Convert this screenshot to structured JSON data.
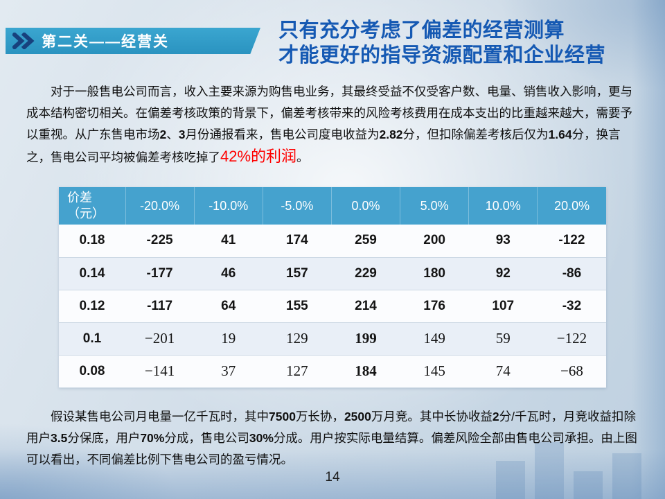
{
  "banner": {
    "label": "第二关——经营关",
    "icon": "double-chevron-right"
  },
  "title": {
    "line1": "只有充分考虑了偏差的经营测算",
    "line2": "才能更好的指导资源配置和企业经营"
  },
  "intro": {
    "before": "对于一般售电公司而言，收入主要来源为购售电业务，其最终受益不仅受客户数、电量、销售收入影响，更与成本结构密切相关。在偏差考核政策的背景下，偏差考核带来的风险考核费用在成本支出的比重越来越大，需要予以重视。从广东售电市场2、3月份通报看来，售电公司度电收益为2.82分，但扣除偏差考核后仅为1.64分，换言之，售电公司平均被偏差考核吃掉了",
    "highlight": "42%的利润",
    "after": "。"
  },
  "table": {
    "header": [
      "价差\n（元）",
      "-20.0%",
      "-10.0%",
      "-5.0%",
      "0.0%",
      "5.0%",
      "10.0%",
      "20.0%"
    ],
    "rows": [
      [
        "0.18",
        "-225",
        "41",
        "174",
        "259",
        "200",
        "93",
        "-122"
      ],
      [
        "0.14",
        "-177",
        "46",
        "157",
        "229",
        "180",
        "92",
        "-86"
      ],
      [
        "0.12",
        "-117",
        "64",
        "155",
        "214",
        "176",
        "107",
        "-32"
      ],
      [
        "0.1",
        "−201",
        "19",
        "129",
        "199",
        "149",
        "59",
        "−122"
      ],
      [
        "0.08",
        "−141",
        "37",
        "127",
        "184",
        "145",
        "74",
        "−68"
      ]
    ]
  },
  "footnote": "假设某售电公司月电量一亿千瓦时，其中7500万长协，2500万月竞。其中长协收益2分/千瓦时，月竞收益扣除用户3.5分保底，用户70%分成，售电公司30%分成。用户按实际电量结算。偏差风险全部由售电公司承担。由上图可以看出，不同偏差比例下售电公司的盈亏情况。",
  "page_number": "14",
  "colors": {
    "banner_teal": "#2f9dc9",
    "chevron_navy": "#17417d",
    "title_blue": "#1559b3",
    "highlight_red": "#fe0000",
    "table_header_blue": "#45a2ce"
  }
}
